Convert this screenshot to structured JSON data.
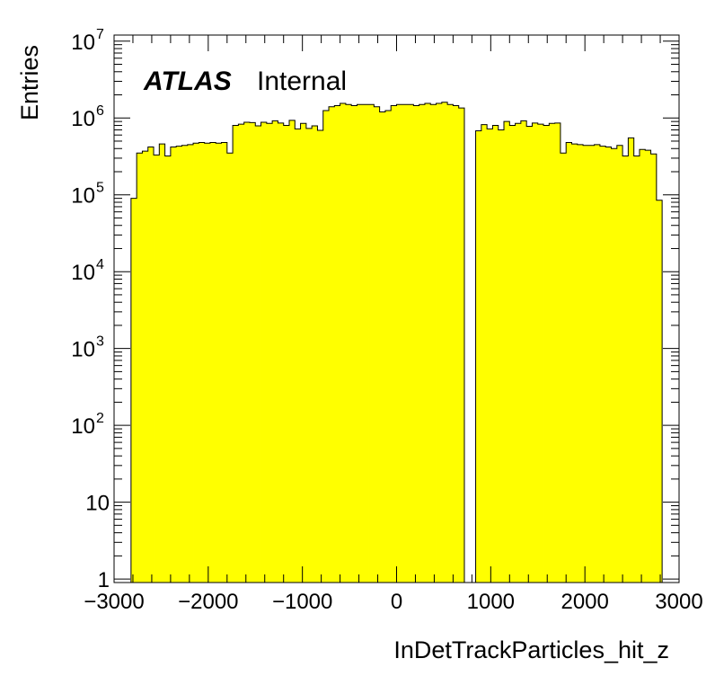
{
  "chart_data": {
    "type": "histogram",
    "title": "",
    "xlabel": "InDetTrackParticles_hit_z",
    "ylabel": "Entries",
    "xlim": [
      -3000,
      3000
    ],
    "ylim": [
      0.9,
      12000000
    ],
    "yscale": "log",
    "grid": false,
    "legend": "none",
    "fill_color": "#ffff00",
    "line_color": "#000000",
    "annotation": {
      "bold_text": "ATLAS",
      "text": "Internal"
    },
    "x_ticks": [
      "−3000",
      "−2000",
      "−1000",
      "0",
      "1000",
      "2000",
      "3000"
    ],
    "x_tick_values": [
      -3000,
      -2000,
      -1000,
      0,
      1000,
      2000,
      3000
    ],
    "y_ticks": [
      {
        "value": 1,
        "label": "1"
      },
      {
        "value": 10,
        "label": "10"
      },
      {
        "value": 100,
        "base": "10",
        "exp": "2"
      },
      {
        "value": 1000,
        "base": "10",
        "exp": "3"
      },
      {
        "value": 10000,
        "base": "10",
        "exp": "4"
      },
      {
        "value": 100000,
        "base": "10",
        "exp": "5"
      },
      {
        "value": 1000000,
        "base": "10",
        "exp": "6"
      },
      {
        "value": 10000000,
        "base": "10",
        "exp": "7"
      }
    ],
    "bin_width": 60,
    "bins": [
      [
        -2820,
        90000
      ],
      [
        -2760,
        350000
      ],
      [
        -2700,
        370000
      ],
      [
        -2640,
        420000
      ],
      [
        -2580,
        330000
      ],
      [
        -2520,
        460000
      ],
      [
        -2460,
        320000
      ],
      [
        -2400,
        420000
      ],
      [
        -2340,
        430000
      ],
      [
        -2280,
        440000
      ],
      [
        -2220,
        450000
      ],
      [
        -2160,
        470000
      ],
      [
        -2100,
        480000
      ],
      [
        -2040,
        470000
      ],
      [
        -1980,
        480000
      ],
      [
        -1920,
        470000
      ],
      [
        -1860,
        480000
      ],
      [
        -1800,
        350000
      ],
      [
        -1740,
        800000
      ],
      [
        -1680,
        830000
      ],
      [
        -1620,
        880000
      ],
      [
        -1560,
        870000
      ],
      [
        -1500,
        790000
      ],
      [
        -1440,
        880000
      ],
      [
        -1380,
        850000
      ],
      [
        -1320,
        920000
      ],
      [
        -1260,
        860000
      ],
      [
        -1200,
        800000
      ],
      [
        -1140,
        930000
      ],
      [
        -1080,
        720000
      ],
      [
        -1020,
        850000
      ],
      [
        -960,
        730000
      ],
      [
        -900,
        790000
      ],
      [
        -840,
        690000
      ],
      [
        -780,
        1250000
      ],
      [
        -720,
        1400000
      ],
      [
        -660,
        1450000
      ],
      [
        -600,
        1550000
      ],
      [
        -540,
        1500000
      ],
      [
        -480,
        1450000
      ],
      [
        -420,
        1500000
      ],
      [
        -360,
        1500000
      ],
      [
        -300,
        1500000
      ],
      [
        -240,
        1400000
      ],
      [
        -180,
        1200000
      ],
      [
        -120,
        1250000
      ],
      [
        -60,
        1450000
      ],
      [
        0,
        1500000
      ],
      [
        60,
        1500000
      ],
      [
        120,
        1500000
      ],
      [
        180,
        1450000
      ],
      [
        240,
        1500000
      ],
      [
        300,
        1550000
      ],
      [
        360,
        1500000
      ],
      [
        420,
        1550000
      ],
      [
        480,
        1600000
      ],
      [
        540,
        1500000
      ],
      [
        600,
        1450000
      ],
      [
        660,
        1350000
      ],
      [
        840,
        680000
      ],
      [
        900,
        820000
      ],
      [
        960,
        720000
      ],
      [
        1020,
        800000
      ],
      [
        1080,
        700000
      ],
      [
        1140,
        900000
      ],
      [
        1200,
        800000
      ],
      [
        1260,
        850000
      ],
      [
        1320,
        920000
      ],
      [
        1380,
        780000
      ],
      [
        1440,
        860000
      ],
      [
        1500,
        830000
      ],
      [
        1560,
        800000
      ],
      [
        1620,
        850000
      ],
      [
        1680,
        860000
      ],
      [
        1740,
        350000
      ],
      [
        1800,
        480000
      ],
      [
        1860,
        460000
      ],
      [
        1920,
        450000
      ],
      [
        1980,
        440000
      ],
      [
        2040,
        440000
      ],
      [
        2100,
        450000
      ],
      [
        2160,
        430000
      ],
      [
        2220,
        420000
      ],
      [
        2280,
        400000
      ],
      [
        2340,
        440000
      ],
      [
        2400,
        320000
      ],
      [
        2460,
        550000
      ],
      [
        2520,
        320000
      ],
      [
        2580,
        390000
      ],
      [
        2640,
        380000
      ],
      [
        2700,
        340000
      ],
      [
        2760,
        85000
      ]
    ]
  }
}
